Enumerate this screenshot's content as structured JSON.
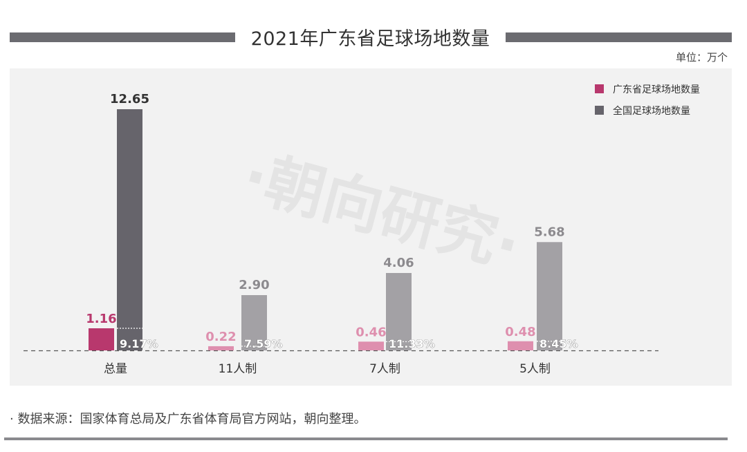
{
  "header": {
    "title": "2021年广东省足球场地数量",
    "unit": "单位：万个"
  },
  "watermark": "·朝向研究·",
  "footer": {
    "source": "·  数据来源：国家体育总局及广东省体育局官方网站，朝向整理。"
  },
  "chart_data": {
    "type": "bar",
    "categories": [
      "总量",
      "11人制",
      "7人制",
      "5人制"
    ],
    "series": [
      {
        "name": "广东省足球场地数量",
        "values": [
          1.16,
          0.22,
          0.46,
          0.48
        ],
        "color": "#b8386d",
        "light_color": "#de8fae"
      },
      {
        "name": "全国足球场地数量",
        "values": [
          12.65,
          2.9,
          4.06,
          5.68
        ],
        "color": "#66646b",
        "light_color": "#a3a1a5"
      }
    ],
    "value_labels": {
      "guangdong": [
        "1.16",
        "0.22",
        "0.46",
        "0.48"
      ],
      "national": [
        "12.65",
        "2.90",
        "4.06",
        "5.68"
      ]
    },
    "share_labels": [
      "9.17%",
      "7.59%",
      "11.33%",
      "8.45%"
    ],
    "ylim": [
      0,
      12.65
    ],
    "grid": false,
    "legend_position": "top-right"
  }
}
